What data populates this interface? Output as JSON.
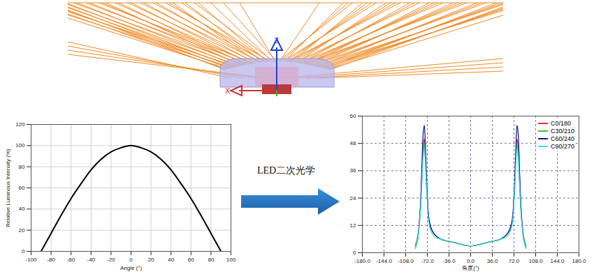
{
  "chart_data": [
    {
      "type": "line",
      "x": [
        -90,
        -80,
        -70,
        -60,
        -50,
        -40,
        -30,
        -20,
        -10,
        0,
        10,
        20,
        30,
        40,
        50,
        60,
        70,
        80,
        90
      ],
      "values": [
        0,
        17,
        34,
        50,
        64,
        77,
        87,
        94,
        98,
        100,
        98,
        94,
        87,
        77,
        64,
        50,
        34,
        17,
        0
      ],
      "color": "#000000",
      "xlabel": "Angle (°)",
      "ylabel": "Relative Luminous Intensity (%)",
      "xlim": [
        -100,
        100
      ],
      "xticks": [
        -100,
        -80,
        -60,
        -40,
        -20,
        0,
        20,
        40,
        60,
        80,
        100
      ],
      "ylim": [
        0,
        120
      ],
      "yticks": [
        0,
        20,
        40,
        60,
        80,
        100,
        120
      ],
      "grid": true
    },
    {
      "type": "line",
      "x": [
        -92,
        -88,
        -84,
        -81,
        -79,
        -77,
        -75,
        -72,
        -68,
        -60,
        -50,
        -36,
        -20,
        0,
        20,
        36,
        50,
        60,
        68,
        72,
        75,
        77,
        79,
        81,
        84,
        88,
        92
      ],
      "series": [
        {
          "name": "C0/180",
          "color": "#e03030",
          "values": [
            3,
            7,
            18,
            35,
            46,
            50,
            40,
            24,
            12,
            8,
            6,
            5,
            4,
            3,
            4,
            5,
            6,
            8,
            12,
            24,
            40,
            50,
            46,
            35,
            18,
            7,
            3
          ]
        },
        {
          "name": "C30/210",
          "color": "#33cc33",
          "values": [
            3,
            7,
            17,
            33,
            44,
            48,
            40,
            23,
            12,
            8,
            6,
            5,
            4,
            3,
            4,
            5,
            6,
            8,
            12,
            23,
            40,
            48,
            44,
            33,
            17,
            7,
            3
          ]
        },
        {
          "name": "C60/240",
          "color": "#1a1aa0",
          "values": [
            2,
            6,
            18,
            38,
            52,
            56,
            45,
            25,
            13,
            8,
            6,
            5,
            4,
            3,
            4,
            5,
            6,
            8,
            13,
            25,
            45,
            56,
            52,
            38,
            18,
            6,
            2
          ]
        },
        {
          "name": "C90/270",
          "color": "#40e0e0",
          "values": [
            2,
            6,
            16,
            31,
            42,
            46,
            38,
            22,
            11,
            7,
            6,
            5,
            4,
            3,
            4,
            5,
            6,
            7,
            11,
            22,
            38,
            46,
            42,
            31,
            16,
            6,
            2
          ]
        }
      ],
      "xlabel": "角度(°)",
      "xlim": [
        -180,
        180
      ],
      "xticks": [
        {
          "value": -180,
          "label": "-180.0"
        },
        {
          "value": -144,
          "label": "-144.0"
        },
        {
          "value": -108,
          "label": "-108.0"
        },
        {
          "value": -72,
          "label": "-72.0"
        },
        {
          "value": -36,
          "label": "-36.0"
        },
        {
          "value": 0,
          "label": "0.0"
        },
        {
          "value": 36,
          "label": "36.0"
        },
        {
          "value": 72,
          "label": "72.0"
        },
        {
          "value": 108,
          "label": "108.0"
        },
        {
          "value": 144,
          "label": "144.0"
        },
        {
          "value": 180,
          "label": "180.0"
        }
      ],
      "ylim": [
        0,
        60
      ],
      "yticks": [
        0,
        12,
        24,
        36,
        48,
        60
      ],
      "grid": true,
      "legend": "top-right"
    }
  ],
  "diagram": {
    "axis_labels": [
      "Z",
      "X"
    ],
    "arrow_label": "LED二次光学"
  }
}
